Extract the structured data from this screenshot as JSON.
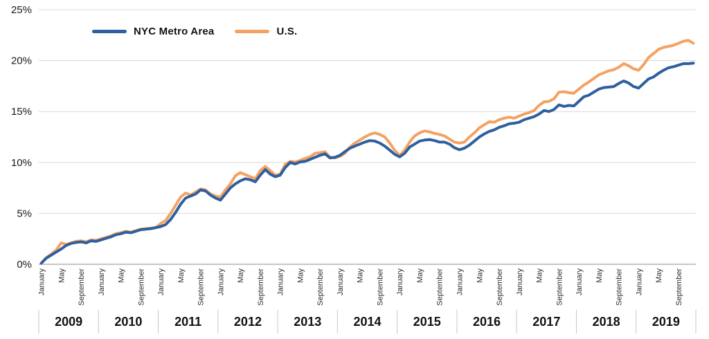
{
  "chart_data": {
    "type": "line",
    "title": "",
    "xlabel": "",
    "ylabel": "",
    "ylim": [
      0,
      25
    ],
    "y_tick_step": 5,
    "y_tick_labels": [
      "0%",
      "5%",
      "10%",
      "15%",
      "20%",
      "25%"
    ],
    "grid": "horizontal",
    "grid_color": "#d9d9d9",
    "axis_line_color": "#c6c6c6",
    "tick_text_color": "#2e2e2e",
    "years": [
      "2009",
      "2010",
      "2011",
      "2012",
      "2013",
      "2014",
      "2015",
      "2016",
      "2017",
      "2018",
      "2019"
    ],
    "month_ticks": [
      {
        "label": "January",
        "month": 0
      },
      {
        "label": "May",
        "month": 4
      },
      {
        "label": "September",
        "month": 8
      }
    ],
    "x_start": "January 2009",
    "x_end": "December 2019",
    "legend_position": "top-left-inside",
    "series": [
      {
        "name": "NYC Metro Area",
        "color": "#2e5f9e",
        "values": [
          0.1,
          0.6,
          0.9,
          1.2,
          1.5,
          1.85,
          2.05,
          2.15,
          2.2,
          2.1,
          2.3,
          2.25,
          2.4,
          2.55,
          2.7,
          2.9,
          3.0,
          3.15,
          3.1,
          3.25,
          3.4,
          3.45,
          3.5,
          3.6,
          3.7,
          3.9,
          4.4,
          5.1,
          5.9,
          6.5,
          6.7,
          6.9,
          7.3,
          7.2,
          6.8,
          6.5,
          6.3,
          6.9,
          7.5,
          7.9,
          8.2,
          8.4,
          8.3,
          8.1,
          8.75,
          9.3,
          8.85,
          8.6,
          8.75,
          9.5,
          10.0,
          9.85,
          10.05,
          10.1,
          10.3,
          10.5,
          10.7,
          10.85,
          10.45,
          10.5,
          10.7,
          11.05,
          11.4,
          11.6,
          11.8,
          12.0,
          12.15,
          12.1,
          11.9,
          11.6,
          11.2,
          10.8,
          10.55,
          10.9,
          11.5,
          11.8,
          12.1,
          12.2,
          12.25,
          12.15,
          12.0,
          12.0,
          11.8,
          11.45,
          11.25,
          11.4,
          11.7,
          12.1,
          12.5,
          12.8,
          13.05,
          13.2,
          13.45,
          13.6,
          13.8,
          13.85,
          13.95,
          14.2,
          14.35,
          14.5,
          14.75,
          15.1,
          15.0,
          15.2,
          15.65,
          15.5,
          15.6,
          15.55,
          16.0,
          16.45,
          16.6,
          16.9,
          17.2,
          17.35,
          17.4,
          17.45,
          17.75,
          18.0,
          17.8,
          17.45,
          17.3,
          17.75,
          18.2,
          18.4,
          18.75,
          19.05,
          19.3,
          19.4,
          19.55,
          19.7,
          19.7,
          19.75
        ]
      },
      {
        "name": "U.S.",
        "color": "#f4a263",
        "values": [
          0.1,
          0.65,
          1.0,
          1.4,
          2.1,
          1.95,
          2.1,
          2.25,
          2.3,
          2.2,
          2.4,
          2.35,
          2.5,
          2.65,
          2.8,
          3.0,
          3.1,
          3.25,
          3.15,
          3.3,
          3.45,
          3.5,
          3.55,
          3.6,
          4.0,
          4.3,
          5.0,
          5.8,
          6.6,
          7.0,
          6.8,
          7.1,
          7.4,
          7.3,
          6.9,
          6.7,
          6.6,
          7.3,
          7.9,
          8.7,
          9.0,
          8.8,
          8.6,
          8.4,
          9.2,
          9.6,
          9.2,
          8.75,
          8.85,
          9.8,
          10.1,
          10.05,
          10.2,
          10.4,
          10.55,
          10.9,
          10.95,
          11.05,
          10.5,
          10.45,
          10.6,
          10.9,
          11.5,
          11.9,
          12.2,
          12.5,
          12.75,
          12.9,
          12.75,
          12.5,
          11.9,
          11.2,
          10.7,
          11.2,
          12.0,
          12.6,
          12.9,
          13.1,
          13.0,
          12.85,
          12.75,
          12.6,
          12.3,
          12.0,
          11.9,
          12.0,
          12.5,
          12.9,
          13.4,
          13.7,
          14.0,
          13.95,
          14.2,
          14.35,
          14.45,
          14.35,
          14.55,
          14.75,
          14.9,
          15.1,
          15.6,
          15.95,
          16.0,
          16.25,
          16.9,
          16.95,
          16.85,
          16.8,
          17.2,
          17.6,
          17.9,
          18.25,
          18.6,
          18.8,
          19.0,
          19.1,
          19.35,
          19.7,
          19.5,
          19.2,
          19.05,
          19.6,
          20.3,
          20.7,
          21.1,
          21.3,
          21.4,
          21.5,
          21.7,
          21.9,
          22.0,
          21.7
        ]
      }
    ]
  },
  "legend": {
    "items": [
      {
        "label": "NYC Metro Area",
        "color": "#2e5f9e"
      },
      {
        "label": "U.S.",
        "color": "#f4a263"
      }
    ]
  }
}
